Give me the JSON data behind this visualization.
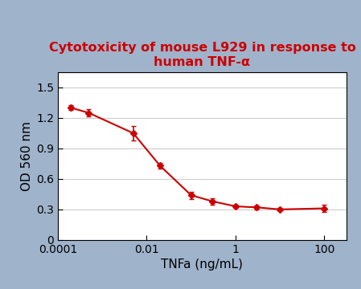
{
  "title_line1": "Cytotoxicity of mouse L929 in response to",
  "title_line2": "human TNF-α",
  "xlabel": "TNFa (ng/mL)",
  "ylabel": "OD 560 nm",
  "title_color": "#cc0000",
  "line_color": "#cc0000",
  "marker_color": "#cc0000",
  "background_color_outer": "#9fb3cb",
  "background_color_inner": "#ffffff",
  "x_data": [
    0.0002,
    0.0005,
    0.005,
    0.02,
    0.1,
    0.3,
    1.0,
    3.0,
    10.0,
    100.0
  ],
  "y_data": [
    1.3,
    1.25,
    1.05,
    0.73,
    0.44,
    0.38,
    0.33,
    0.32,
    0.3,
    0.31
  ],
  "y_err": [
    0.025,
    0.035,
    0.07,
    0.025,
    0.035,
    0.03,
    0.015,
    0.02,
    0.012,
    0.035
  ],
  "ylim": [
    0,
    1.65
  ],
  "yticks": [
    0,
    0.3,
    0.6,
    0.9,
    1.2,
    1.5
  ],
  "xtick_labels": [
    "0.0001",
    "0.01",
    "1",
    "100"
  ],
  "xtick_positions": [
    0.0001,
    0.01,
    1,
    100
  ],
  "title_fontsize": 11.5,
  "axis_label_fontsize": 11,
  "tick_fontsize": 10
}
